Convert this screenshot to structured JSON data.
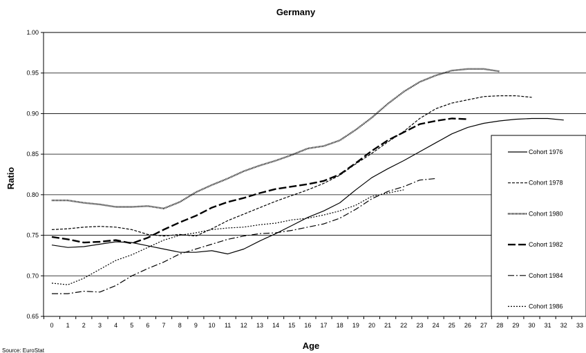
{
  "chart_data": {
    "type": "line",
    "title": "Germany",
    "xlabel": "Age",
    "ylabel": "Ratio",
    "source": "Source: EuroStat",
    "xlim": [
      0,
      33
    ],
    "ylim": [
      0.65,
      1.0
    ],
    "yticks": [
      "0.65",
      "0.70",
      "0.75",
      "0.80",
      "0.85",
      "0.90",
      "0.95",
      "1.00"
    ],
    "xticks": [
      "0",
      "1",
      "2",
      "3",
      "4",
      "5",
      "6",
      "7",
      "8",
      "9",
      "10",
      "11",
      "12",
      "13",
      "14",
      "15",
      "16",
      "17",
      "18",
      "19",
      "20",
      "21",
      "22",
      "23",
      "24",
      "25",
      "26",
      "27",
      "28",
      "29",
      "30",
      "31",
      "32",
      "33"
    ],
    "grid": "horizontal",
    "legend_position": "right",
    "series": [
      {
        "name": "Cohort 1976",
        "style": "solid",
        "x": [
          0,
          1,
          2,
          3,
          4,
          5,
          6,
          7,
          8,
          9,
          10,
          11,
          12,
          13,
          14,
          15,
          16,
          17,
          18,
          19,
          20,
          21,
          22,
          23,
          24,
          25,
          26,
          27,
          28,
          29,
          30,
          31,
          32
        ],
        "values": [
          0.738,
          0.735,
          0.736,
          0.739,
          0.742,
          0.741,
          0.737,
          0.733,
          0.729,
          0.729,
          0.731,
          0.727,
          0.733,
          0.743,
          0.752,
          0.762,
          0.772,
          0.78,
          0.79,
          0.806,
          0.821,
          0.832,
          0.842,
          0.853,
          0.864,
          0.875,
          0.883,
          0.888,
          0.891,
          0.893,
          0.894,
          0.894,
          0.892
        ]
      },
      {
        "name": "Cohort 1978",
        "style": "dashed",
        "x": [
          0,
          1,
          2,
          3,
          4,
          5,
          6,
          7,
          8,
          9,
          10,
          11,
          12,
          13,
          14,
          15,
          16,
          17,
          18,
          19,
          20,
          21,
          22,
          23,
          24,
          25,
          26,
          27,
          28,
          29,
          30
        ],
        "values": [
          0.757,
          0.758,
          0.76,
          0.761,
          0.76,
          0.757,
          0.751,
          0.749,
          0.751,
          0.749,
          0.758,
          0.768,
          0.776,
          0.784,
          0.792,
          0.799,
          0.806,
          0.814,
          0.824,
          0.838,
          0.851,
          0.865,
          0.878,
          0.894,
          0.906,
          0.913,
          0.917,
          0.921,
          0.922,
          0.922,
          0.92
        ]
      },
      {
        "name": "Cohort 1980",
        "style": "dotted-thick",
        "x": [
          0,
          1,
          2,
          3,
          4,
          5,
          6,
          7,
          8,
          9,
          10,
          11,
          12,
          13,
          14,
          15,
          16,
          17,
          18,
          19,
          20,
          21,
          22,
          23,
          24,
          25,
          26,
          27,
          28
        ],
        "values": [
          0.793,
          0.793,
          0.79,
          0.788,
          0.785,
          0.785,
          0.786,
          0.783,
          0.791,
          0.803,
          0.812,
          0.82,
          0.829,
          0.836,
          0.842,
          0.849,
          0.857,
          0.86,
          0.867,
          0.88,
          0.895,
          0.912,
          0.927,
          0.939,
          0.947,
          0.953,
          0.955,
          0.955,
          0.952
        ]
      },
      {
        "name": "Cohort 1982",
        "style": "long-dash-thick",
        "x": [
          0,
          1,
          2,
          3,
          4,
          5,
          6,
          7,
          8,
          9,
          10,
          11,
          12,
          13,
          14,
          15,
          16,
          17,
          18,
          19,
          20,
          21,
          22,
          23,
          24,
          25,
          26
        ],
        "values": [
          0.748,
          0.745,
          0.741,
          0.742,
          0.744,
          0.74,
          0.747,
          0.757,
          0.766,
          0.774,
          0.784,
          0.791,
          0.796,
          0.802,
          0.807,
          0.81,
          0.813,
          0.817,
          0.825,
          0.839,
          0.854,
          0.867,
          0.877,
          0.887,
          0.891,
          0.894,
          0.893
        ]
      },
      {
        "name": "Cohort 1984",
        "style": "dash-dot",
        "x": [
          0,
          1,
          2,
          3,
          4,
          5,
          6,
          7,
          8,
          9,
          10,
          11,
          12,
          13,
          14,
          15,
          16,
          17,
          18,
          19,
          20,
          21,
          22,
          23,
          24
        ],
        "values": [
          0.678,
          0.678,
          0.681,
          0.68,
          0.688,
          0.7,
          0.709,
          0.717,
          0.727,
          0.733,
          0.739,
          0.745,
          0.749,
          0.752,
          0.753,
          0.756,
          0.76,
          0.764,
          0.771,
          0.782,
          0.795,
          0.804,
          0.81,
          0.818,
          0.82
        ]
      },
      {
        "name": "Cohort 1986",
        "style": "dotted",
        "x": [
          0,
          1,
          2,
          3,
          4,
          5,
          6,
          7,
          8,
          9,
          10,
          11,
          12,
          13,
          14,
          15,
          16,
          17,
          18,
          19,
          20,
          21,
          22
        ],
        "values": [
          0.691,
          0.689,
          0.697,
          0.708,
          0.719,
          0.726,
          0.735,
          0.744,
          0.75,
          0.753,
          0.757,
          0.759,
          0.76,
          0.763,
          0.765,
          0.769,
          0.771,
          0.775,
          0.78,
          0.787,
          0.798,
          0.802,
          0.806
        ]
      }
    ]
  }
}
